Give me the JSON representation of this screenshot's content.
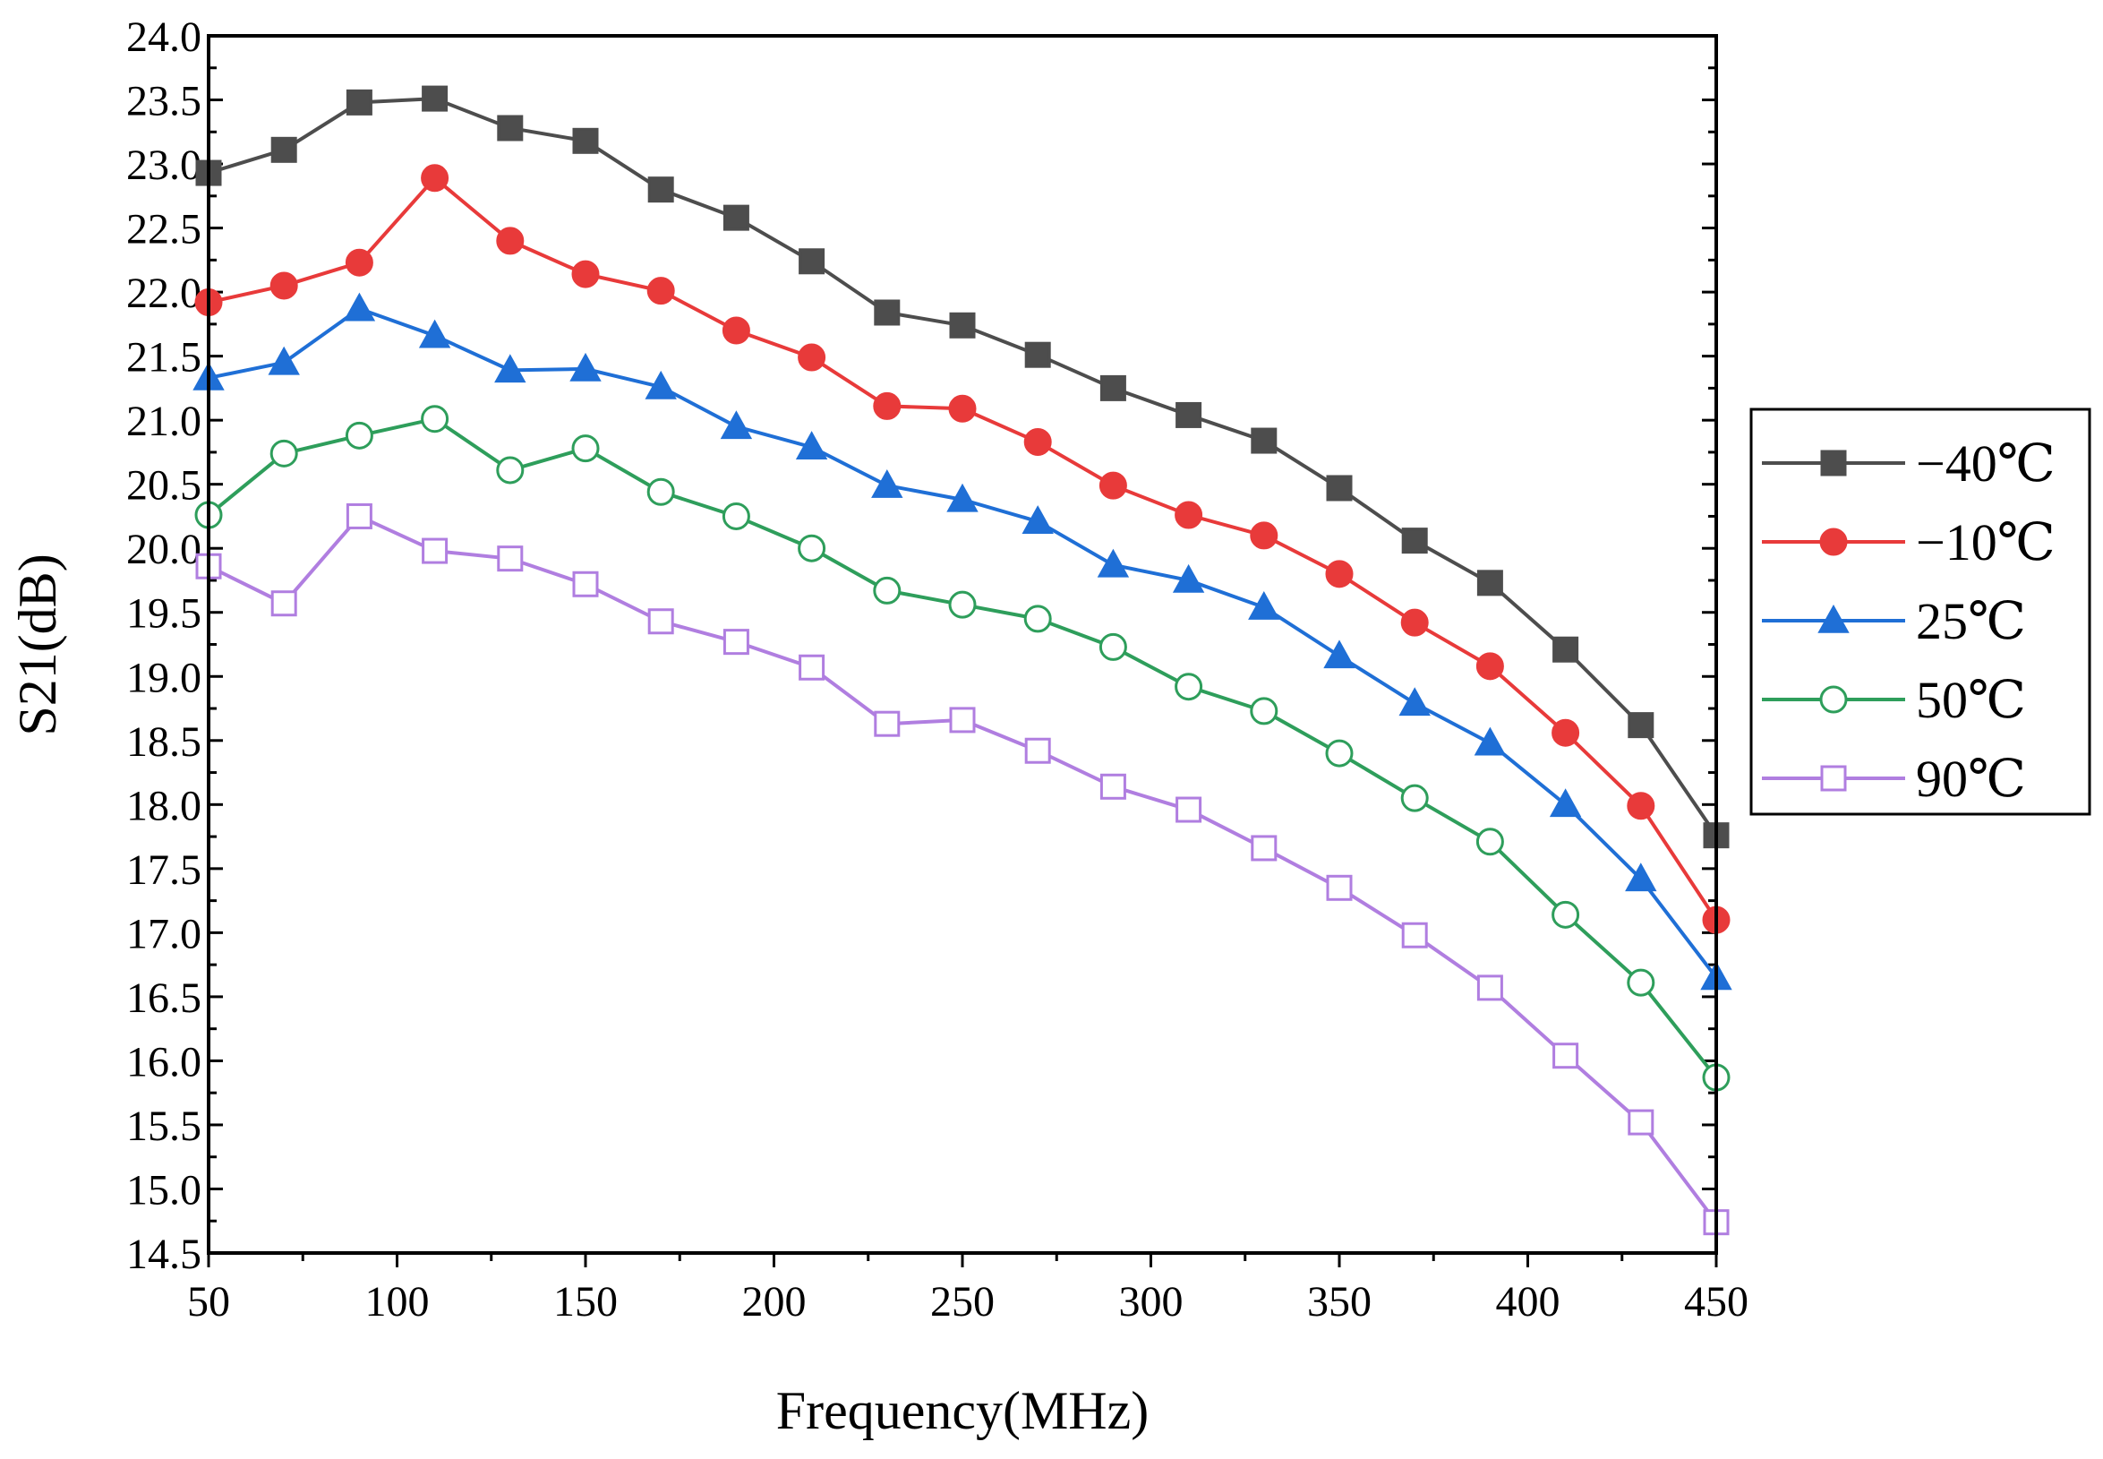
{
  "chart_data": {
    "type": "line",
    "title": "",
    "xlabel": "Frequency(MHz)",
    "ylabel": "S21(dB)",
    "xlim": [
      50,
      450
    ],
    "ylim": [
      14.5,
      24.0
    ],
    "x_ticks": [
      50,
      100,
      150,
      200,
      250,
      300,
      350,
      400,
      450
    ],
    "y_ticks": [
      "14.5",
      "15.0",
      "15.5",
      "16.0",
      "16.5",
      "17.0",
      "17.5",
      "18.0",
      "18.5",
      "19.0",
      "19.5",
      "20.0",
      "20.5",
      "21.0",
      "21.5",
      "22.0",
      "22.5",
      "23.0",
      "23.5",
      "24.0"
    ],
    "grid": false,
    "legend_position": "right",
    "x": [
      50,
      70,
      90,
      110,
      130,
      150,
      170,
      190,
      210,
      230,
      250,
      270,
      290,
      310,
      330,
      350,
      370,
      390,
      410,
      430,
      450
    ],
    "series": [
      {
        "name": "−40℃",
        "color": "#4d4d4d",
        "marker": "square-filled",
        "values": [
          22.93,
          23.11,
          23.48,
          23.51,
          23.28,
          23.18,
          22.8,
          22.58,
          22.24,
          21.84,
          21.74,
          21.51,
          21.25,
          21.04,
          20.84,
          20.47,
          20.06,
          19.73,
          19.21,
          18.62,
          17.76
        ]
      },
      {
        "name": "−10℃",
        "color": "#e83a3a",
        "marker": "circle-filled",
        "values": [
          21.92,
          22.05,
          22.23,
          22.89,
          22.4,
          22.14,
          22.01,
          21.7,
          21.49,
          21.11,
          21.09,
          20.83,
          20.49,
          20.26,
          20.1,
          19.8,
          19.42,
          19.08,
          18.56,
          17.99,
          17.1
        ]
      },
      {
        "name": "25℃",
        "color": "#1f6fd6",
        "marker": "triangle-filled",
        "values": [
          21.33,
          21.45,
          21.87,
          21.66,
          21.39,
          21.4,
          21.26,
          20.95,
          20.79,
          20.49,
          20.38,
          20.21,
          19.87,
          19.75,
          19.54,
          19.16,
          18.79,
          18.48,
          18.0,
          17.42,
          16.65
        ]
      },
      {
        "name": "50℃",
        "color": "#2e9e5b",
        "marker": "circle-open",
        "values": [
          20.26,
          20.74,
          20.88,
          21.01,
          20.61,
          20.78,
          20.44,
          20.25,
          20.0,
          19.67,
          19.56,
          19.45,
          19.23,
          18.92,
          18.73,
          18.4,
          18.05,
          17.71,
          17.14,
          16.61,
          15.87
        ]
      },
      {
        "name": "90℃",
        "color": "#b07ee0",
        "marker": "square-open",
        "values": [
          19.86,
          19.57,
          20.25,
          19.98,
          19.92,
          19.72,
          19.43,
          19.27,
          19.07,
          18.63,
          18.66,
          18.42,
          18.14,
          17.96,
          17.66,
          17.35,
          16.98,
          16.57,
          16.04,
          15.52,
          14.74
        ]
      }
    ]
  }
}
